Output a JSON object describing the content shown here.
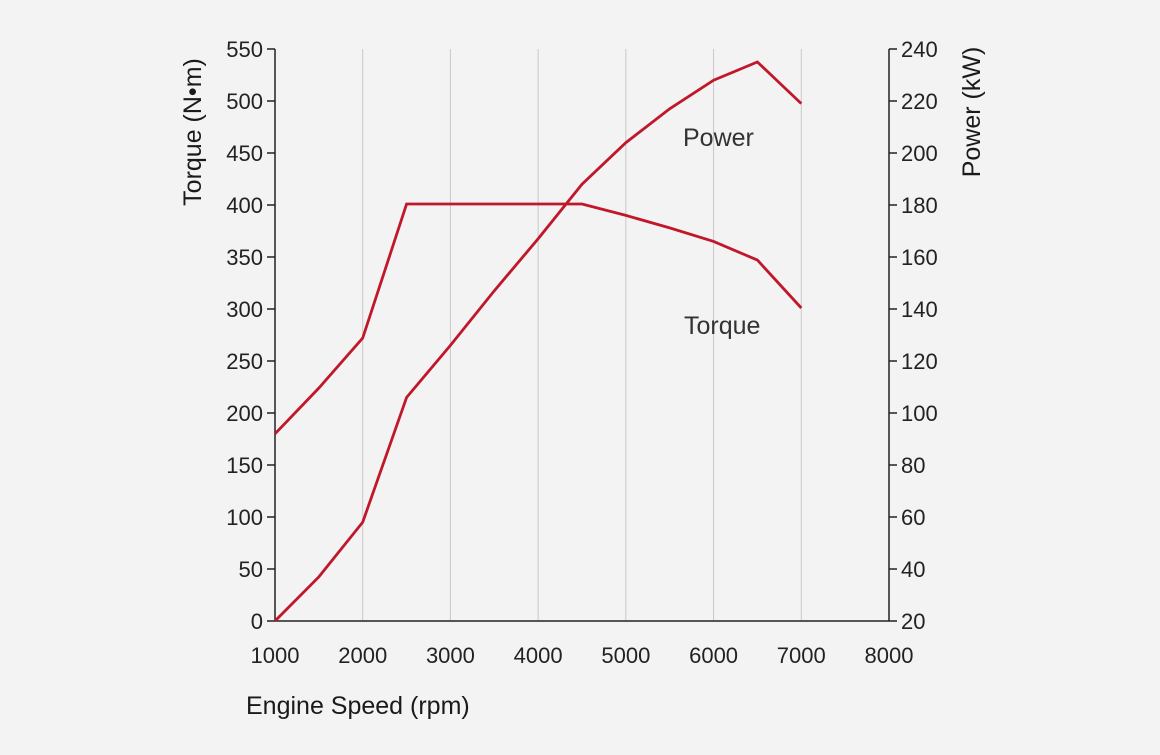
{
  "chart_data": {
    "type": "line",
    "xlabel": "Engine Speed (rpm)",
    "ylabel_left": "Torque (N•m)",
    "ylabel_right": "Power (kW)",
    "xlim": [
      1000,
      8000
    ],
    "ylim_left": [
      0,
      550
    ],
    "ylim_right": [
      20,
      240
    ],
    "x_ticks": [
      1000,
      2000,
      3000,
      4000,
      5000,
      6000,
      7000,
      8000
    ],
    "y_left_ticks": [
      0,
      50,
      100,
      150,
      200,
      250,
      300,
      350,
      400,
      450,
      500,
      550
    ],
    "y_right_ticks": [
      20,
      40,
      60,
      80,
      100,
      120,
      140,
      160,
      180,
      200,
      220,
      240
    ],
    "grid": "vertical",
    "line_color": "#c0182a",
    "series": [
      {
        "name": "Torque",
        "axis": "left",
        "x": [
          1000,
          1500,
          2000,
          2500,
          3000,
          3500,
          4000,
          4500,
          5000,
          5500,
          6000,
          6500,
          7000
        ],
        "values": [
          180,
          224,
          272,
          401,
          401,
          401,
          401,
          401,
          390,
          378,
          365,
          347,
          301
        ]
      },
      {
        "name": "Power",
        "axis": "right",
        "x": [
          1000,
          1500,
          2000,
          2500,
          3000,
          3500,
          4000,
          4500,
          5000,
          5500,
          6000,
          6500,
          7000
        ],
        "values": [
          20,
          37,
          58,
          106,
          126,
          147,
          167,
          188,
          204,
          217,
          228,
          235,
          219
        ]
      }
    ]
  }
}
